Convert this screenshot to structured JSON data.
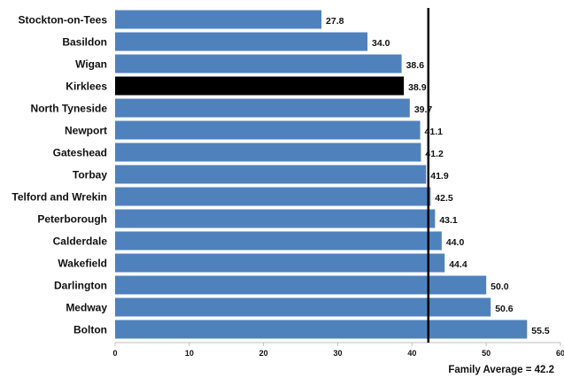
{
  "chart_data": {
    "type": "bar",
    "orientation": "horizontal",
    "categories": [
      "Stockton-on-Tees",
      "Basildon",
      "Wigan",
      "Kirklees",
      "North Tyneside",
      "Newport",
      "Gateshead",
      "Torbay",
      "Telford and Wrekin",
      "Peterborough",
      "Calderdale",
      "Wakefield",
      "Darlington",
      "Medway",
      "Bolton"
    ],
    "values": [
      27.8,
      34.0,
      38.6,
      38.9,
      39.7,
      41.1,
      41.2,
      41.9,
      42.5,
      43.1,
      44.0,
      44.4,
      50.0,
      50.6,
      55.5
    ],
    "value_labels": [
      "27.8",
      "34.0",
      "38.6",
      "38.9",
      "39.7",
      "41.1",
      "41.2",
      "41.9",
      "42.5",
      "43.1",
      "44.0",
      "44.4",
      "50.0",
      "50.6",
      "55.5"
    ],
    "highlight_category": "Kirklees",
    "xlim": [
      0,
      60
    ],
    "xticks": [
      "0",
      "10",
      "20",
      "30",
      "40",
      "50",
      "60"
    ],
    "grid": false,
    "reference_line": {
      "value": 42.2,
      "label": "Family Average = 42.2"
    },
    "colors": {
      "bar": "#4f81bd",
      "highlight": "#000000",
      "reference_line": "#000000"
    }
  }
}
